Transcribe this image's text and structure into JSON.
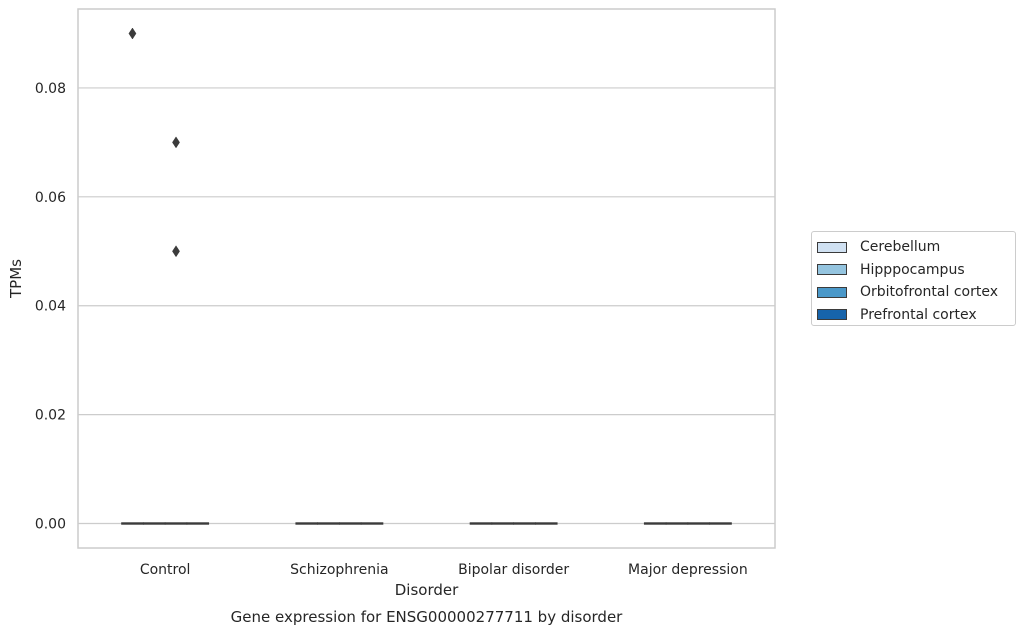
{
  "chart_data": {
    "type": "box",
    "caption": "Gene expression for ENSG00000277711 by disorder",
    "xlabel": "Disorder",
    "ylabel": "TPMs",
    "categories": [
      "Control",
      "Schizophrenia",
      "Bipolar disorder",
      "Major depression"
    ],
    "ylim": [
      -0.0045,
      0.0945
    ],
    "yticks": [
      0.0,
      0.02,
      0.04,
      0.06,
      0.08
    ],
    "ytick_labels": [
      "0.00",
      "0.02",
      "0.04",
      "0.06",
      "0.08"
    ],
    "grid": "horizontal",
    "legend_position": "right",
    "series": [
      {
        "name": "Cerebellum",
        "color": "#d0e1f2",
        "boxes": [
          {
            "q1": 0,
            "median": 0,
            "q3": 0,
            "whisker_low": 0,
            "whisker_high": 0,
            "outliers": [
              0.09
            ]
          },
          {
            "q1": 0,
            "median": 0,
            "q3": 0,
            "whisker_low": 0,
            "whisker_high": 0,
            "outliers": []
          },
          {
            "q1": 0,
            "median": 0,
            "q3": 0,
            "whisker_low": 0,
            "whisker_high": 0,
            "outliers": []
          },
          {
            "q1": 0,
            "median": 0,
            "q3": 0,
            "whisker_low": 0,
            "whisker_high": 0,
            "outliers": []
          }
        ]
      },
      {
        "name": "Hipppocampus",
        "color": "#94c4df",
        "boxes": [
          {
            "q1": 0,
            "median": 0,
            "q3": 0,
            "whisker_low": 0,
            "whisker_high": 0,
            "outliers": []
          },
          {
            "q1": 0,
            "median": 0,
            "q3": 0,
            "whisker_low": 0,
            "whisker_high": 0,
            "outliers": []
          },
          {
            "q1": 0,
            "median": 0,
            "q3": 0,
            "whisker_low": 0,
            "whisker_high": 0,
            "outliers": []
          },
          {
            "q1": 0,
            "median": 0,
            "q3": 0,
            "whisker_low": 0,
            "whisker_high": 0,
            "outliers": []
          }
        ]
      },
      {
        "name": "Orbitofrontal cortex",
        "color": "#4a98c9",
        "boxes": [
          {
            "q1": 0,
            "median": 0,
            "q3": 0,
            "whisker_low": 0,
            "whisker_high": 0,
            "outliers": [
              0.07,
              0.05
            ]
          },
          {
            "q1": 0,
            "median": 0,
            "q3": 0,
            "whisker_low": 0,
            "whisker_high": 0,
            "outliers": []
          },
          {
            "q1": 0,
            "median": 0,
            "q3": 0,
            "whisker_low": 0,
            "whisker_high": 0,
            "outliers": []
          },
          {
            "q1": 0,
            "median": 0,
            "q3": 0,
            "whisker_low": 0,
            "whisker_high": 0,
            "outliers": []
          }
        ]
      },
      {
        "name": "Prefrontal cortex",
        "color": "#1764ab",
        "boxes": [
          {
            "q1": 0,
            "median": 0,
            "q3": 0,
            "whisker_low": 0,
            "whisker_high": 0,
            "outliers": []
          },
          {
            "q1": 0,
            "median": 0,
            "q3": 0,
            "whisker_low": 0,
            "whisker_high": 0,
            "outliers": []
          },
          {
            "q1": 0,
            "median": 0,
            "q3": 0,
            "whisker_low": 0,
            "whisker_high": 0,
            "outliers": []
          },
          {
            "q1": 0,
            "median": 0,
            "q3": 0,
            "whisker_low": 0,
            "whisker_high": 0,
            "outliers": []
          }
        ]
      }
    ]
  }
}
